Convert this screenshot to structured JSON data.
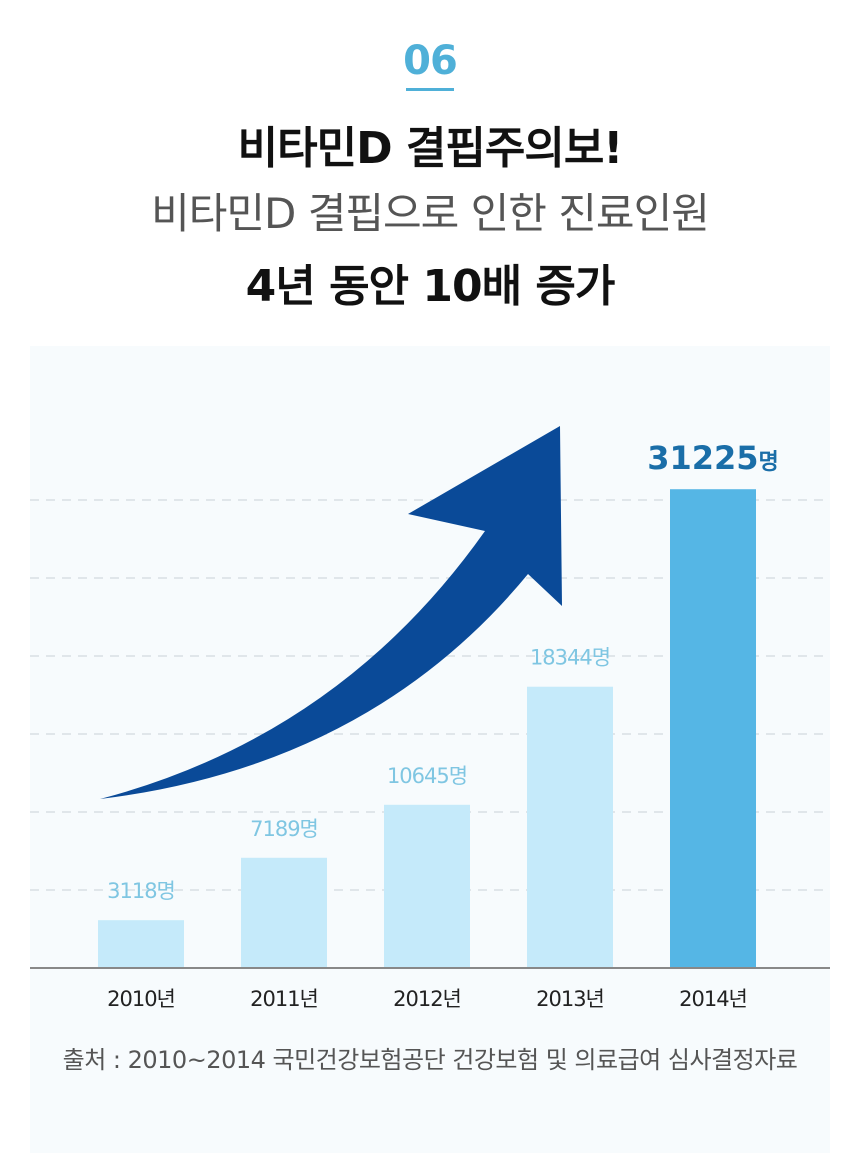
{
  "header": {
    "number": "06",
    "title_line1": "비타민D 결핍주의보!",
    "title_line2": "비타민D 결핍으로 인한 진료인원",
    "title_line3": "4년 동안 10배 증가"
  },
  "source": "출처 : 2010~2014 국민건강보험공단 건강보험 및 의료급여 심사결정자료",
  "colors": {
    "accent": "#4fb0d8",
    "bar_light": "#c5eafa",
    "bar_highlight": "#55b6e5",
    "label_light": "#7fc6e2",
    "label_highlight": "#1a6ea8",
    "arrow": "#0a4a98",
    "grid": "#d9dfe3",
    "axis": "#888888"
  },
  "chart_data": {
    "type": "bar",
    "categories": [
      "2010년",
      "2011년",
      "2012년",
      "2013년",
      "2014년"
    ],
    "values": [
      3118,
      7189,
      10645,
      18344,
      31225
    ],
    "value_labels": [
      "3118명",
      "7189명",
      "10645명",
      "18344명",
      "31225"
    ],
    "highlight_unit": "명",
    "highlight_index": 4,
    "ylim": [
      0,
      36000
    ],
    "grid": true,
    "legend": "none"
  }
}
